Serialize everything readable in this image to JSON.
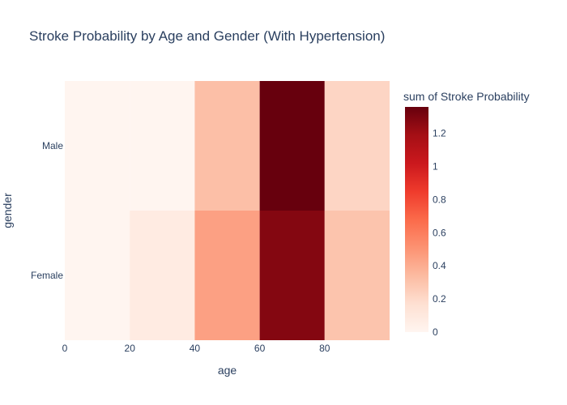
{
  "chart_data": {
    "type": "heatmap",
    "title": "Stroke Probability by Age and Gender (With Hypertension)",
    "xlabel": "age",
    "ylabel": "gender",
    "x_bins": [
      [
        0,
        20
      ],
      [
        20,
        40
      ],
      [
        40,
        60
      ],
      [
        60,
        80
      ],
      [
        80,
        100
      ]
    ],
    "x_range": [
      0,
      100
    ],
    "x_ticks": [
      0,
      20,
      40,
      60,
      80
    ],
    "y_categories": [
      "Female",
      "Male"
    ],
    "z": [
      [
        0.0,
        0.08,
        0.45,
        1.28,
        0.3
      ],
      [
        0.0,
        0.0,
        0.32,
        1.36,
        0.22
      ]
    ],
    "colorbar": {
      "title": "sum of Stroke Probability",
      "min": 0,
      "max": 1.36,
      "ticks": [
        0,
        0.2,
        0.4,
        0.6,
        0.8,
        1,
        1.2
      ],
      "tick_labels": [
        "0",
        "0.2",
        "0.4",
        "0.6",
        "0.8",
        "1",
        "1.2"
      ],
      "colorscale": [
        "#fff5f0",
        "#fee0d2",
        "#fcbba1",
        "#fc9272",
        "#fb6a4a",
        "#ef3b2c",
        "#cb181d",
        "#a50f15",
        "#67000d"
      ]
    }
  }
}
